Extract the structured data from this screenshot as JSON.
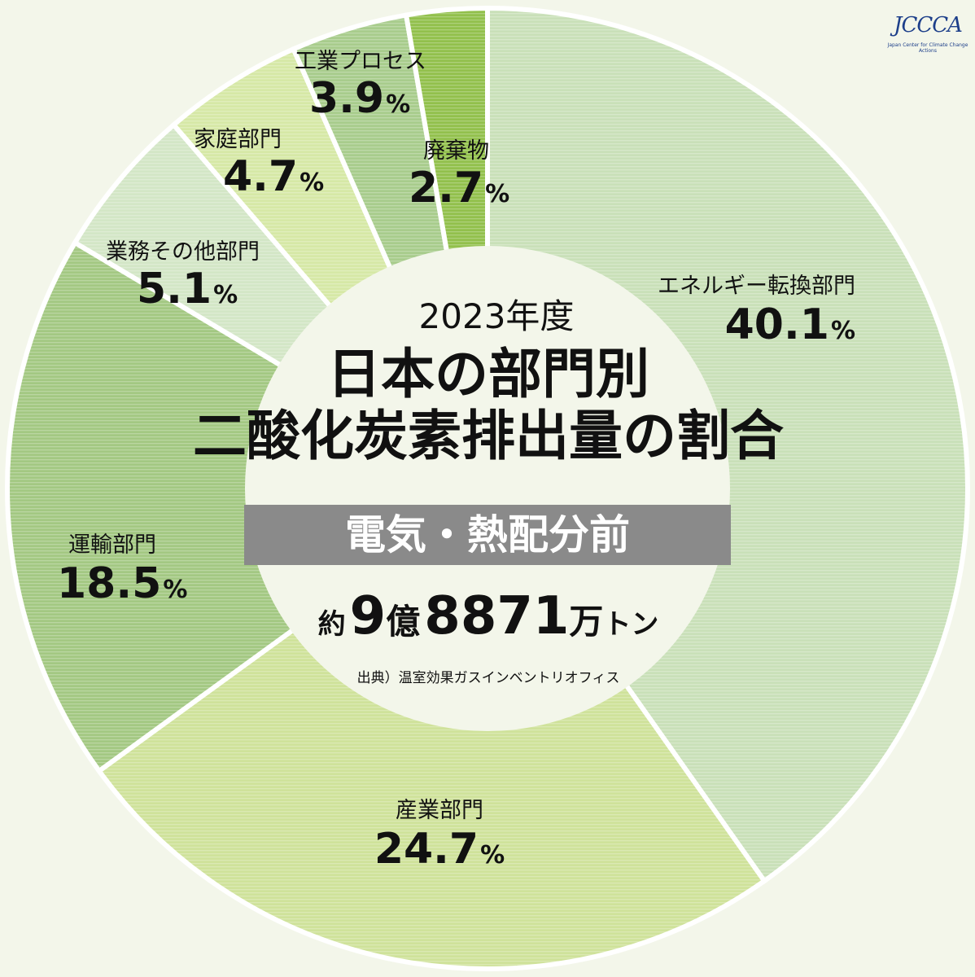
{
  "header": {
    "logo_text": "JCCCA",
    "logo_sub": "Japan Center for Climate Change Actions"
  },
  "center": {
    "year": "2023年度",
    "title_line1": "日本の部門別",
    "title_line2": "二酸化炭素排出量の割合",
    "band": "電気・熱配分前",
    "total_prefix": "約",
    "total_oku_num": "9",
    "total_oku_unit": "億",
    "total_man_num": "8871",
    "total_man_unit": "万",
    "total_ton": "トン",
    "source": "出典）温室効果ガスインベントリオフィス"
  },
  "chart_data": {
    "type": "pie",
    "unit": "%",
    "slices": [
      {
        "label": "エネルギー転換部門",
        "value": 40.1,
        "pct_text": "40.1",
        "color": "#c9e0b8"
      },
      {
        "label": "産業部門",
        "value": 24.7,
        "pct_text": "24.7",
        "color": "#cfe29a"
      },
      {
        "label": "運輸部門",
        "value": 18.5,
        "pct_text": "18.5",
        "color": "#a3c882"
      },
      {
        "label": "業務その他部門",
        "value": 5.1,
        "pct_text": "5.1",
        "color": "#d3e6c6"
      },
      {
        "label": "家庭部門",
        "value": 4.7,
        "pct_text": "4.7",
        "color": "#d6e8a6"
      },
      {
        "label": "工業プロセス",
        "value": 3.9,
        "pct_text": "3.9",
        "color": "#a8cc8c"
      },
      {
        "label": "廃棄物",
        "value": 2.7,
        "pct_text": "2.7",
        "color": "#92c04c"
      }
    ]
  }
}
